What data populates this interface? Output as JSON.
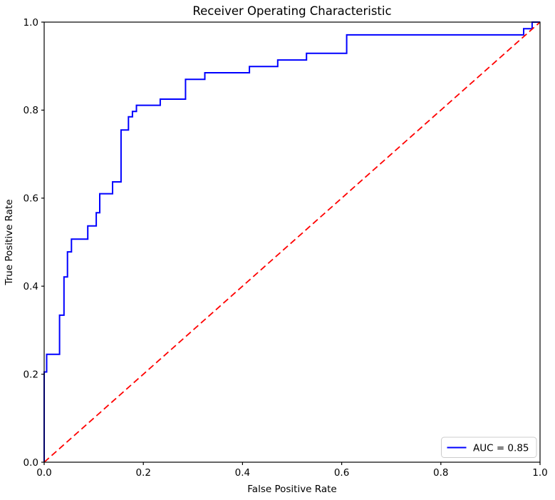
{
  "figure": {
    "title": "Receiver Operating Characteristic",
    "xlabel": "False Positive Rate",
    "ylabel": "True Positive Rate"
  },
  "legend": {
    "label": "AUC = 0.85",
    "position": "lower right"
  },
  "colors": {
    "roc_curve": "#0000ff",
    "chance_line": "#ff0000",
    "axis": "#000000",
    "background": "#ffffff",
    "legend_border": "#cccccc",
    "legend_fill": "#ffffff"
  },
  "axes": {
    "x_tick_labels": [
      "0.0",
      "0.2",
      "0.4",
      "0.6",
      "0.8",
      "1.0"
    ],
    "y_tick_labels": [
      "0.0",
      "0.2",
      "0.4",
      "0.6",
      "0.8",
      "1.0"
    ],
    "xlim": [
      0.0,
      1.0
    ],
    "ylim": [
      0.0,
      1.0
    ],
    "grid": false
  },
  "chart_data": {
    "type": "line",
    "title": "Receiver Operating Characteristic",
    "xlabel": "False Positive Rate",
    "ylabel": "True Positive Rate",
    "xlim": [
      0.0,
      1.0
    ],
    "ylim": [
      0.0,
      1.0
    ],
    "grid": false,
    "legend_position": "lower right",
    "auc": 0.85,
    "series": [
      {
        "name": "ROC curve (AUC = 0.85)",
        "style": "solid",
        "color": "#0000ff",
        "x": [
          0.0,
          0.0,
          0.005,
          0.005,
          0.031,
          0.031,
          0.04,
          0.04,
          0.047,
          0.047,
          0.055,
          0.055,
          0.088,
          0.088,
          0.105,
          0.105,
          0.112,
          0.112,
          0.138,
          0.138,
          0.155,
          0.155,
          0.17,
          0.17,
          0.178,
          0.178,
          0.186,
          0.186,
          0.234,
          0.234,
          0.285,
          0.285,
          0.324,
          0.324,
          0.414,
          0.414,
          0.471,
          0.471,
          0.529,
          0.529,
          0.61,
          0.61,
          0.967,
          0.967,
          0.984,
          0.984,
          1.0
        ],
        "y": [
          0.0,
          0.205,
          0.205,
          0.245,
          0.245,
          0.334,
          0.334,
          0.421,
          0.421,
          0.478,
          0.478,
          0.507,
          0.507,
          0.537,
          0.537,
          0.567,
          0.567,
          0.61,
          0.61,
          0.637,
          0.637,
          0.755,
          0.755,
          0.785,
          0.785,
          0.797,
          0.797,
          0.811,
          0.811,
          0.825,
          0.825,
          0.87,
          0.87,
          0.885,
          0.885,
          0.899,
          0.899,
          0.914,
          0.914,
          0.929,
          0.929,
          0.971,
          0.971,
          0.985,
          0.985,
          1.0,
          1.0
        ]
      },
      {
        "name": "chance diagonal",
        "style": "dashed",
        "color": "#ff0000",
        "x": [
          0.0,
          1.0
        ],
        "y": [
          0.0,
          1.0
        ]
      }
    ]
  }
}
